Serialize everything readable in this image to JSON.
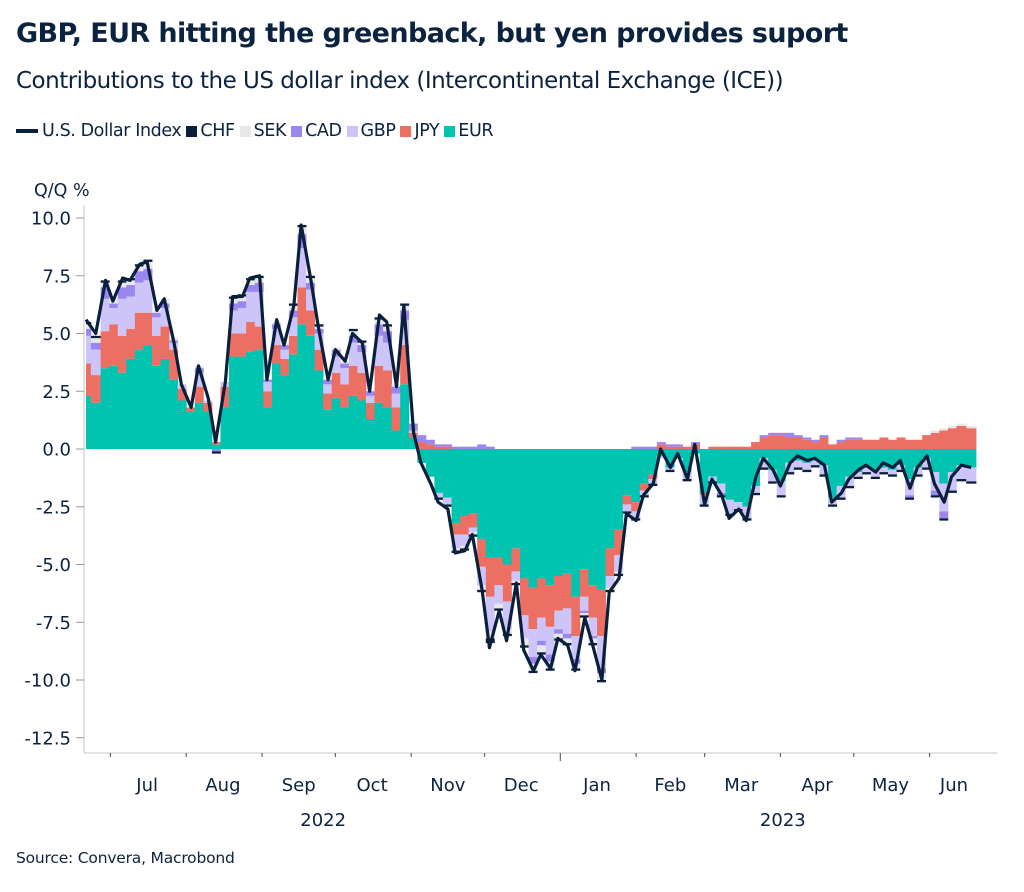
{
  "title": "GBP, EUR hitting the greenback, but yen provides suport",
  "subtitle": "Contributions to the US dollar index (Intercontinental Exchange (ICE))",
  "source": "Source: Convera, Macrobond",
  "legend": [
    {
      "label": "U.S. Dollar Index",
      "kind": "line",
      "color": "#0a1f3c"
    },
    {
      "label": "CHF",
      "kind": "box",
      "color": "#0a1f3c"
    },
    {
      "label": "SEK",
      "kind": "box",
      "color": "#e8e8e8"
    },
    {
      "label": "CAD",
      "kind": "box",
      "color": "#9b87f0"
    },
    {
      "label": "GBP",
      "kind": "box",
      "color": "#cdc4f7"
    },
    {
      "label": "JPY",
      "kind": "box",
      "color": "#ec6f63"
    },
    {
      "label": "EUR",
      "kind": "box",
      "color": "#00c4b0"
    }
  ],
  "chart_data": {
    "type": "bar",
    "stacked": true,
    "title": "GBP, EUR hitting the greenback, but yen provides suport",
    "subtitle": "Contributions to the US dollar index (Intercontinental Exchange (ICE))",
    "ylabel": "Q/Q %",
    "xlabel": "",
    "ylim": [
      -13.2,
      10.6
    ],
    "yticks": [
      10.0,
      7.5,
      5.0,
      2.5,
      0.0,
      -2.5,
      -5.0,
      -7.5,
      -10.0,
      -12.5
    ],
    "ytick_labels": [
      "10.0",
      "7.5",
      "5.0",
      "2.5",
      "0.0",
      "-2.5",
      "-5.0",
      "-7.5",
      "-10.0",
      "-12.5"
    ],
    "x_range_days": [
      0,
      364
    ],
    "x_start_date": "2022-06-21",
    "month_ticks_days": [
      10,
      41,
      72,
      102,
      133,
      163,
      194,
      225,
      253,
      284,
      314,
      345
    ],
    "month_labels": [
      {
        "label": "Jul",
        "day": 25
      },
      {
        "label": "Aug",
        "day": 56
      },
      {
        "label": "Sep",
        "day": 87
      },
      {
        "label": "Oct",
        "day": 117
      },
      {
        "label": "Nov",
        "day": 148
      },
      {
        "label": "Dec",
        "day": 178
      },
      {
        "label": "Jan",
        "day": 209
      },
      {
        "label": "Feb",
        "day": 239
      },
      {
        "label": "Mar",
        "day": 268
      },
      {
        "label": "Apr",
        "day": 299
      },
      {
        "label": "May",
        "day": 329
      },
      {
        "label": "Jun",
        "day": 355
      }
    ],
    "year_labels": [
      {
        "label": "2022",
        "day": 97
      },
      {
        "label": "2023",
        "day": 285
      }
    ],
    "year_divider_day": 194,
    "legend_position": "top-left",
    "grid": false,
    "days": [
      0,
      4,
      8,
      11,
      15,
      18,
      22,
      25,
      29,
      32,
      36,
      39,
      43,
      46,
      50,
      53,
      57,
      60,
      64,
      67,
      71,
      74,
      78,
      81,
      85,
      88,
      92,
      95,
      99,
      102,
      106,
      109,
      113,
      116,
      120,
      123,
      127,
      130,
      134,
      137,
      141,
      144,
      148,
      151,
      155,
      158,
      162,
      165,
      169,
      172,
      176,
      179,
      183,
      186,
      190,
      193,
      197,
      200,
      204,
      207,
      211,
      214,
      218,
      221,
      225,
      228,
      232,
      235,
      239,
      242,
      246,
      249,
      253,
      256,
      260,
      263,
      267,
      270,
      274,
      277,
      281,
      284,
      288,
      291,
      295,
      298,
      302,
      305,
      309,
      312,
      316,
      319,
      323,
      326,
      330,
      333,
      337,
      340,
      344,
      347,
      351,
      354,
      358,
      362
    ],
    "index_line": [
      5.6,
      5.0,
      7.3,
      6.4,
      7.4,
      7.3,
      8.0,
      8.1,
      6.0,
      6.5,
      4.6,
      2.8,
      1.8,
      3.6,
      2.2,
      0.3,
      2.9,
      6.6,
      6.6,
      7.4,
      7.5,
      3.0,
      5.6,
      4.5,
      6.2,
      9.7,
      7.3,
      5.3,
      3.0,
      4.3,
      3.8,
      5.0,
      4.6,
      2.5,
      5.8,
      5.5,
      2.7,
      6.2,
      0.7,
      -0.6,
      -1.5,
      -2.3,
      -2.6,
      -4.5,
      -4.4,
      -3.7,
      -6.1,
      -8.6,
      -7.0,
      -8.3,
      -5.8,
      -8.7,
      -9.6,
      -8.9,
      -9.5,
      -8.2,
      -8.5,
      -9.6,
      -7.3,
      -8.4,
      -10.0,
      -6.2,
      -5.6,
      -2.8,
      -3.1,
      -2.0,
      -1.5,
      0.0,
      -0.8,
      -0.2,
      -1.3,
      0.2,
      -2.4,
      -1.3,
      -2.0,
      -3.0,
      -2.6,
      -3.1,
      -1.2,
      -0.4,
      -0.9,
      -1.6,
      -0.6,
      -0.3,
      -0.5,
      -0.4,
      -0.7,
      -2.3,
      -1.9,
      -1.3,
      -0.9,
      -0.7,
      -1.0,
      -0.6,
      -0.8,
      -0.5,
      -1.7,
      -0.8,
      -0.3,
      -1.5,
      -2.3,
      -1.2,
      -0.7,
      -0.8
    ],
    "series": [
      {
        "name": "EUR",
        "color": "#00c4b0",
        "values": [
          2.3,
          2.0,
          3.5,
          3.6,
          3.3,
          3.9,
          4.3,
          4.5,
          3.6,
          3.9,
          3.0,
          2.1,
          1.6,
          2.0,
          1.6,
          0.2,
          1.8,
          4.0,
          4.0,
          4.2,
          4.3,
          1.8,
          3.7,
          3.2,
          4.1,
          5.4,
          4.9,
          3.4,
          1.7,
          2.2,
          1.8,
          2.3,
          2.1,
          1.3,
          2.0,
          1.8,
          0.8,
          2.8,
          0.5,
          -0.6,
          -1.2,
          -1.9,
          -2.1,
          -3.2,
          -2.9,
          -2.8,
          -3.9,
          -4.7,
          -4.7,
          -5.0,
          -4.3,
          -5.6,
          -6.0,
          -5.6,
          -5.9,
          -5.5,
          -5.4,
          -6.4,
          -5.2,
          -5.9,
          -6.1,
          -4.3,
          -3.5,
          -2.0,
          -2.3,
          -1.5,
          -1.1,
          -0.3,
          -0.8,
          -0.4,
          -1.0,
          -0.2,
          -1.9,
          -1.2,
          -1.5,
          -2.2,
          -2.3,
          -2.5,
          -1.6,
          -0.4,
          -0.9,
          -1.4,
          -0.6,
          -0.5,
          -0.6,
          -0.5,
          -0.7,
          -2.1,
          -1.6,
          -1.2,
          -1.0,
          -0.8,
          -0.9,
          -0.8,
          -0.9,
          -0.7,
          -1.3,
          -0.8,
          -0.4,
          -1.0,
          -1.5,
          -1.0,
          -0.7,
          -0.8
        ]
      },
      {
        "name": "JPY",
        "color": "#ec6f63",
        "values": [
          1.4,
          1.2,
          1.6,
          1.8,
          1.6,
          1.3,
          1.6,
          1.4,
          1.3,
          1.4,
          1.3,
          0.5,
          0.2,
          0.7,
          0.4,
          0.1,
          0.9,
          1.0,
          1.0,
          1.3,
          1.0,
          0.7,
          0.8,
          0.7,
          0.8,
          1.6,
          1.1,
          0.9,
          0.7,
          1.1,
          1.0,
          1.3,
          1.2,
          0.7,
          1.6,
          1.6,
          1.0,
          1.7,
          0.2,
          0.3,
          0.2,
          0.1,
          0.1,
          -0.5,
          -0.8,
          -0.6,
          -1.2,
          -1.7,
          -1.2,
          -1.6,
          -1.0,
          -1.6,
          -1.8,
          -1.7,
          -1.8,
          -1.5,
          -1.5,
          -1.7,
          -1.2,
          -1.4,
          -2.0,
          -1.2,
          -1.1,
          -0.4,
          -0.4,
          -0.3,
          -0.2,
          0.2,
          0.1,
          0.1,
          0.1,
          0.2,
          -0.1,
          0.1,
          0.1,
          0.1,
          0.1,
          0.1,
          0.3,
          0.5,
          0.6,
          0.6,
          0.5,
          0.5,
          0.4,
          0.3,
          0.5,
          0.2,
          0.3,
          0.4,
          0.4,
          0.4,
          0.4,
          0.5,
          0.4,
          0.5,
          0.4,
          0.4,
          0.6,
          0.7,
          0.8,
          0.9,
          1.0,
          0.9
        ]
      },
      {
        "name": "GBP",
        "color": "#cdc4f7",
        "values": [
          1.2,
          1.1,
          1.4,
          0.7,
          1.6,
          1.4,
          1.3,
          1.4,
          0.8,
          0.8,
          0.3,
          0.2,
          0.0,
          0.6,
          0.1,
          0.0,
          0.2,
          1.0,
          1.1,
          1.3,
          1.5,
          0.4,
          0.7,
          0.4,
          0.8,
          1.7,
          0.9,
          0.7,
          0.4,
          0.7,
          0.7,
          1.0,
          0.9,
          0.3,
          1.3,
          1.2,
          0.6,
          1.1,
          0.1,
          0.0,
          0.0,
          -0.2,
          -0.3,
          -0.6,
          -0.5,
          -0.2,
          -0.8,
          -1.5,
          -0.8,
          -1.2,
          -0.4,
          -1.0,
          -1.2,
          -1.0,
          -1.2,
          -0.8,
          -1.1,
          -1.0,
          -0.6,
          -0.8,
          -1.4,
          -0.5,
          -0.7,
          -0.3,
          -0.3,
          -0.2,
          -0.2,
          -0.1,
          -0.1,
          0.0,
          -0.3,
          0.0,
          -0.4,
          -0.2,
          -0.4,
          -0.6,
          -0.3,
          -0.5,
          -0.3,
          -0.4,
          -0.5,
          -0.6,
          -0.4,
          -0.3,
          -0.3,
          -0.2,
          -0.4,
          -0.3,
          -0.5,
          -0.4,
          -0.2,
          -0.2,
          -0.3,
          -0.2,
          -0.2,
          -0.2,
          -0.7,
          -0.3,
          -0.4,
          -0.8,
          -1.2,
          -0.8,
          -0.6,
          -0.6
        ]
      },
      {
        "name": "CAD",
        "color": "#9b87f0",
        "values": [
          0.3,
          0.3,
          0.5,
          0.2,
          0.5,
          0.5,
          0.5,
          0.5,
          0.2,
          0.2,
          0.1,
          0.0,
          0.0,
          0.2,
          0.0,
          -0.1,
          0.0,
          0.3,
          0.3,
          0.3,
          0.4,
          0.1,
          0.2,
          0.2,
          0.3,
          0.6,
          0.3,
          0.2,
          0.2,
          0.3,
          0.2,
          0.3,
          0.3,
          0.2,
          0.5,
          0.5,
          0.3,
          0.4,
          0.3,
          0.3,
          0.2,
          0.1,
          0.1,
          0.1,
          0.1,
          0.1,
          0.2,
          0.1,
          0.0,
          0.0,
          0.0,
          0.0,
          -0.3,
          -0.2,
          -0.3,
          -0.2,
          -0.2,
          -0.2,
          -0.1,
          -0.1,
          -0.2,
          0.0,
          0.0,
          0.0,
          0.1,
          0.1,
          0.1,
          0.1,
          0.1,
          0.1,
          0.0,
          0.1,
          0.0,
          0.0,
          -0.1,
          0.0,
          0.0,
          0.0,
          0.0,
          0.1,
          0.1,
          0.1,
          0.2,
          0.1,
          0.1,
          0.1,
          0.1,
          0.0,
          0.1,
          0.1,
          0.1,
          0.0,
          0.0,
          0.0,
          0.0,
          0.0,
          -0.1,
          0.0,
          0.0,
          -0.2,
          -0.3,
          0.0,
          0.0,
          0.0
        ]
      },
      {
        "name": "SEK",
        "color": "#e8e8e8",
        "values": [
          0.2,
          0.2,
          0.2,
          0.2,
          0.2,
          0.2,
          0.2,
          0.3,
          0.1,
          0.2,
          0.1,
          0.0,
          0.0,
          0.1,
          0.0,
          0.0,
          0.0,
          0.2,
          0.2,
          0.2,
          0.2,
          0.0,
          0.1,
          0.1,
          0.2,
          0.3,
          0.2,
          0.1,
          0.1,
          0.1,
          0.1,
          0.2,
          0.1,
          0.0,
          0.2,
          0.2,
          0.1,
          0.2,
          0.0,
          0.0,
          0.0,
          0.0,
          0.0,
          -0.1,
          -0.1,
          -0.1,
          -0.2,
          -0.3,
          -0.2,
          -0.2,
          -0.1,
          -0.3,
          -0.3,
          -0.3,
          -0.3,
          -0.2,
          -0.2,
          -0.2,
          -0.1,
          -0.2,
          -0.3,
          -0.1,
          -0.1,
          0.0,
          0.0,
          0.0,
          0.0,
          0.0,
          0.0,
          0.0,
          0.0,
          0.0,
          0.0,
          0.0,
          0.0,
          0.0,
          0.0,
          0.0,
          0.0,
          0.0,
          0.0,
          0.0,
          0.0,
          0.0,
          0.0,
          0.0,
          0.0,
          0.0,
          0.0,
          0.0,
          0.0,
          0.0,
          0.0,
          0.0,
          0.0,
          0.0,
          0.0,
          0.0,
          0.0,
          0.1,
          0.1,
          0.1,
          0.1,
          0.1
        ]
      },
      {
        "name": "CHF",
        "color": "#0a1f3c",
        "values": [
          0.1,
          0.1,
          0.1,
          0.0,
          0.1,
          0.1,
          0.1,
          0.1,
          0.0,
          0.0,
          0.0,
          0.0,
          0.0,
          0.0,
          0.0,
          -0.1,
          0.0,
          0.1,
          0.1,
          0.1,
          0.1,
          0.0,
          0.0,
          0.0,
          0.1,
          0.1,
          0.1,
          0.1,
          0.0,
          0.0,
          0.0,
          0.1,
          0.1,
          0.0,
          0.1,
          0.1,
          0.0,
          0.1,
          0.0,
          0.0,
          0.0,
          -0.1,
          -0.1,
          -0.1,
          -0.1,
          -0.1,
          -0.1,
          -0.2,
          -0.1,
          -0.1,
          -0.1,
          -0.1,
          -0.1,
          -0.1,
          -0.1,
          -0.1,
          -0.1,
          -0.1,
          -0.1,
          -0.1,
          -0.1,
          -0.1,
          -0.1,
          -0.1,
          -0.1,
          -0.1,
          -0.1,
          0.0,
          -0.1,
          0.0,
          -0.1,
          0.0,
          -0.1,
          -0.1,
          -0.1,
          -0.1,
          -0.1,
          -0.1,
          -0.1,
          -0.1,
          -0.1,
          -0.1,
          -0.1,
          -0.1,
          -0.1,
          -0.1,
          -0.1,
          -0.1,
          -0.1,
          -0.1,
          -0.1,
          -0.1,
          -0.1,
          -0.1,
          -0.1,
          -0.1,
          -0.1,
          -0.1,
          -0.1,
          -0.1,
          -0.1,
          -0.1,
          -0.1,
          -0.1
        ]
      }
    ]
  }
}
